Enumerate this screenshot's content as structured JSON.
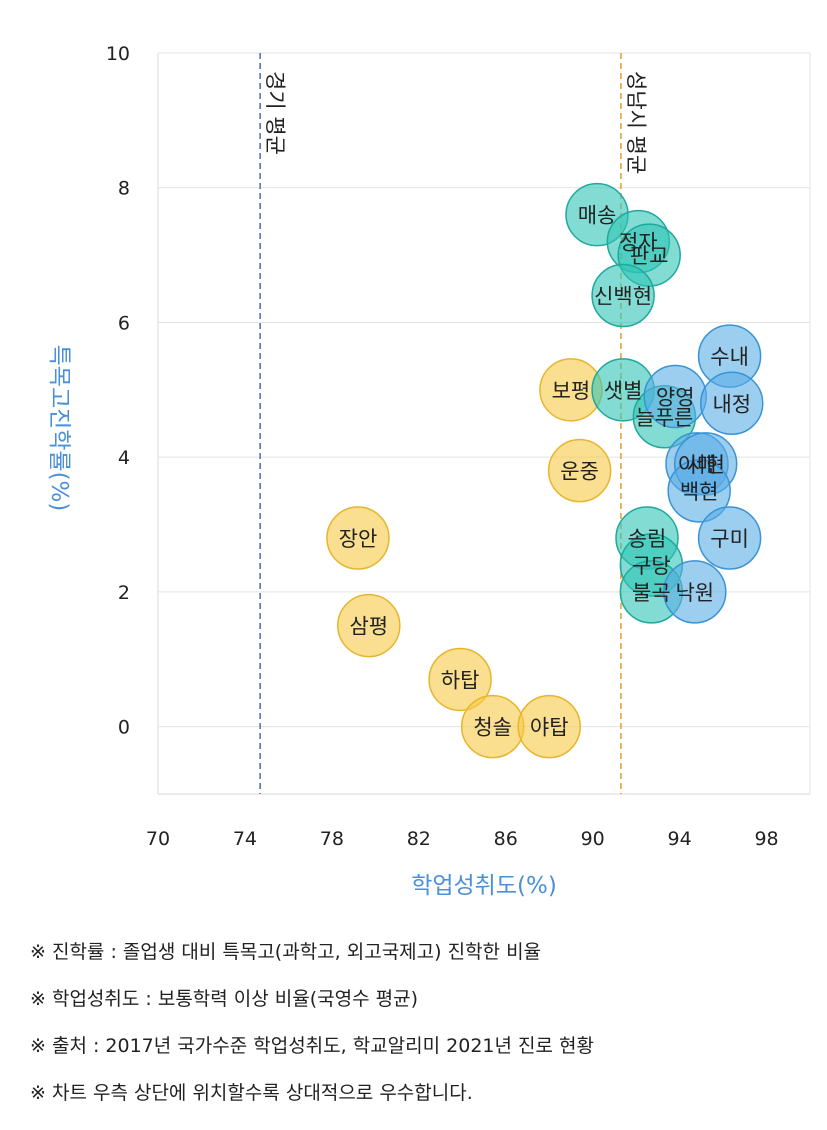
{
  "chart_data": {
    "type": "scatter",
    "xlabel": "학업성취도(%)",
    "ylabel": "특목고진학률(%)",
    "xlim": [
      70,
      100
    ],
    "ylim": [
      -1,
      10
    ],
    "x_ticks": [
      70,
      74,
      78,
      82,
      86,
      90,
      94,
      98
    ],
    "y_ticks": [
      0,
      2,
      4,
      6,
      8,
      10
    ],
    "grid": "horizontal",
    "colors": {
      "yellow": "#f7c948",
      "teal": "#2ec4b6",
      "blue": "#5aaee6"
    },
    "reference_lines": [
      {
        "label": "경기 평균",
        "x": 74.7,
        "color": "#5577aa"
      },
      {
        "label": "성남시 평균",
        "x": 91.3,
        "color": "#e8a23a"
      }
    ],
    "points": [
      {
        "label": "장안",
        "x": 79.2,
        "y": 2.8,
        "group": "yellow"
      },
      {
        "label": "삼평",
        "x": 79.7,
        "y": 1.5,
        "group": "yellow"
      },
      {
        "label": "하탑",
        "x": 83.9,
        "y": 0.7,
        "group": "yellow"
      },
      {
        "label": "청솔",
        "x": 85.4,
        "y": 0.0,
        "group": "yellow"
      },
      {
        "label": "야탑",
        "x": 88.0,
        "y": 0.0,
        "group": "yellow"
      },
      {
        "label": "보평",
        "x": 89.0,
        "y": 5.0,
        "group": "yellow"
      },
      {
        "label": "운중",
        "x": 89.4,
        "y": 3.8,
        "group": "yellow"
      },
      {
        "label": "매송",
        "x": 90.2,
        "y": 7.6,
        "group": "teal"
      },
      {
        "label": "정자",
        "x": 92.1,
        "y": 7.2,
        "group": "teal"
      },
      {
        "label": "판교",
        "x": 92.6,
        "y": 7.0,
        "group": "teal"
      },
      {
        "label": "신백현",
        "x": 91.4,
        "y": 6.4,
        "group": "teal"
      },
      {
        "label": "샛별",
        "x": 91.4,
        "y": 5.0,
        "group": "teal"
      },
      {
        "label": "늘푸른",
        "x": 93.3,
        "y": 4.6,
        "group": "teal"
      },
      {
        "label": "송림",
        "x": 92.5,
        "y": 2.8,
        "group": "teal"
      },
      {
        "label": "구당",
        "x": 92.7,
        "y": 2.4,
        "group": "teal"
      },
      {
        "label": "불곡",
        "x": 92.7,
        "y": 2.0,
        "group": "teal"
      },
      {
        "label": "양영",
        "x": 93.8,
        "y": 4.9,
        "group": "blue"
      },
      {
        "label": "수내",
        "x": 96.3,
        "y": 5.5,
        "group": "blue"
      },
      {
        "label": "내정",
        "x": 96.4,
        "y": 4.8,
        "group": "blue"
      },
      {
        "label": "이매",
        "x": 94.8,
        "y": 3.9,
        "group": "blue"
      },
      {
        "label": "서현",
        "x": 95.2,
        "y": 3.9,
        "group": "blue"
      },
      {
        "label": "백현",
        "x": 94.9,
        "y": 3.5,
        "group": "blue"
      },
      {
        "label": "구미",
        "x": 96.3,
        "y": 2.8,
        "group": "blue"
      },
      {
        "label": "낙원",
        "x": 94.7,
        "y": 2.0,
        "group": "blue"
      }
    ]
  },
  "notes": [
    "※ 진학률 : 졸업생 대비 특목고(과학고, 외고국제고) 진학한 비율",
    "※ 학업성취도 : 보통학력 이상 비율(국영수 평균)",
    "※ 출처 : 2017년 국가수준 학업성취도, 학교알리미 2021년 진로 현황",
    "※ 차트 우측 상단에 위치할수록 상대적으로 우수합니다."
  ]
}
